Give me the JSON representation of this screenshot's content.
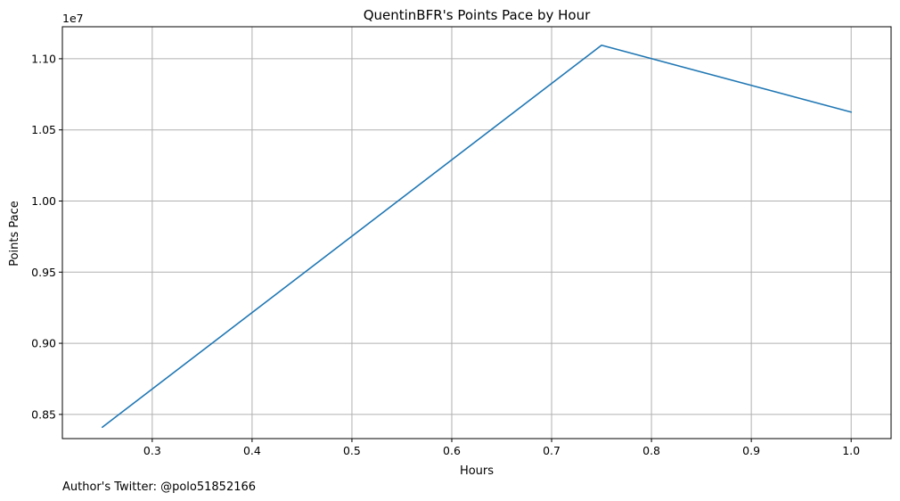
{
  "chart_data": {
    "type": "line",
    "title": "QuentinBFR's Points Pace by Hour",
    "xlabel": "Hours",
    "ylabel": "Points Pace",
    "y_offset_label": "1e7",
    "x": [
      0.25,
      0.75,
      1.0
    ],
    "series": [
      {
        "values": [
          8410000,
          11095000,
          10625000
        ],
        "color": "#1f77b4"
      }
    ],
    "xlim": [
      0.21,
      1.04
    ],
    "ylim": [
      8330000,
      11225000
    ],
    "xticks": [
      0.3,
      0.4,
      0.5,
      0.6,
      0.7,
      0.8,
      0.9,
      1.0
    ],
    "xtick_labels": [
      "0.3",
      "0.4",
      "0.5",
      "0.6",
      "0.7",
      "0.8",
      "0.9",
      "1.0"
    ],
    "yticks": [
      8500000,
      9000000,
      9500000,
      10000000,
      10500000,
      11000000
    ],
    "ytick_labels": [
      "0.85",
      "0.90",
      "0.95",
      "1.00",
      "1.05",
      "1.10"
    ],
    "grid": true,
    "grid_color": "#b0b0b0"
  },
  "footnote": "Author's Twitter: @polo51852166"
}
